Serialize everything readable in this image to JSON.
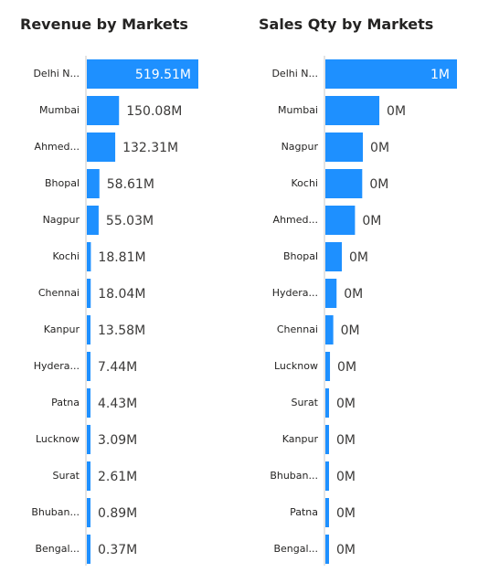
{
  "colors": {
    "bar": "#1e90ff",
    "axis": "#c8c8c8",
    "text": "#252423"
  },
  "chart_data": [
    {
      "type": "bar",
      "orientation": "horizontal",
      "title": "Revenue by Markets",
      "categories": [
        "Delhi N...",
        "Mumbai",
        "Ahmed...",
        "Bhopal",
        "Nagpur",
        "Kochi",
        "Chennai",
        "Kanpur",
        "Hydera...",
        "Patna",
        "Lucknow",
        "Surat",
        "Bhuban...",
        "Bengal..."
      ],
      "values": [
        519.51,
        150.08,
        132.31,
        58.61,
        55.03,
        18.81,
        18.04,
        13.58,
        7.44,
        4.43,
        3.09,
        2.61,
        0.89,
        0.37
      ],
      "labels": [
        "519.51M",
        "150.08M",
        "132.31M",
        "58.61M",
        "55.03M",
        "18.81M",
        "18.04M",
        "13.58M",
        "7.44M",
        "4.43M",
        "3.09M",
        "2.61M",
        "0.89M",
        "0.37M"
      ],
      "unit": "M",
      "xlim": [
        0,
        519.51
      ]
    },
    {
      "type": "bar",
      "orientation": "horizontal",
      "title": "Sales Qty by Markets",
      "categories": [
        "Delhi N...",
        "Mumbai",
        "Nagpur",
        "Kochi",
        "Ahmed...",
        "Bhopal",
        "Hydera...",
        "Chennai",
        "Lucknow",
        "Surat",
        "Kanpur",
        "Bhuban...",
        "Patna",
        "Bengal..."
      ],
      "values": [
        1.0,
        0.41,
        0.285,
        0.28,
        0.225,
        0.125,
        0.085,
        0.06,
        0.035,
        0.012,
        0.01,
        0.008,
        0.005,
        0.004
      ],
      "labels": [
        "1M",
        "0M",
        "0M",
        "0M",
        "0M",
        "0M",
        "0M",
        "0M",
        "0M",
        "0M",
        "0M",
        "0M",
        "0M",
        "0M"
      ],
      "unit": "M",
      "xlim": [
        0,
        1.0
      ]
    }
  ]
}
